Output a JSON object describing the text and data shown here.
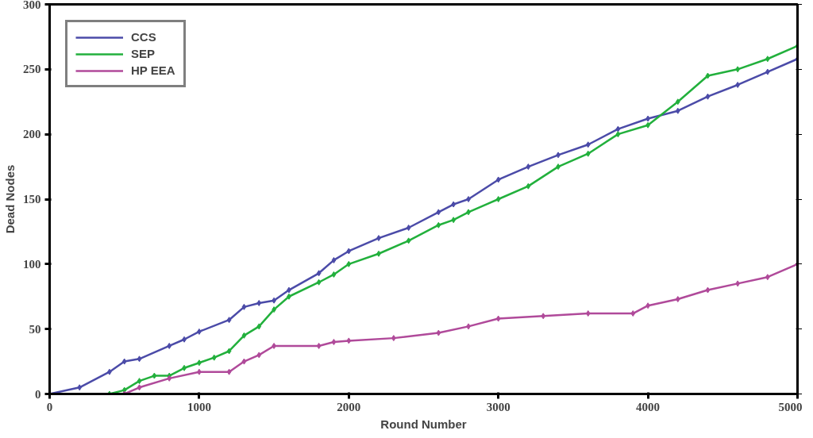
{
  "chart_data": {
    "type": "line",
    "xlabel": "Round Number",
    "ylabel": "Dead Nodes",
    "xlim": [
      0,
      5000
    ],
    "ylim": [
      0,
      300
    ],
    "xticks": [
      0,
      1000,
      2000,
      3000,
      4000,
      5000
    ],
    "yticks": [
      0,
      50,
      100,
      150,
      200,
      250,
      300
    ],
    "grid": false,
    "legend": "top left",
    "marker": "diamond",
    "line_style": "solid",
    "series": [
      {
        "name": "CCS",
        "color": "#4b4ba8",
        "x": [
          0,
          200,
          400,
          500,
          600,
          800,
          900,
          1000,
          1200,
          1300,
          1400,
          1500,
          1600,
          1800,
          1900,
          2000,
          2200,
          2400,
          2600,
          2700,
          2800,
          3000,
          3200,
          3400,
          3600,
          3800,
          4000,
          4200,
          4400,
          4600,
          4800,
          5000
        ],
        "values": [
          0,
          5,
          17,
          25,
          27,
          37,
          42,
          48,
          57,
          67,
          70,
          72,
          80,
          93,
          103,
          110,
          120,
          128,
          140,
          146,
          150,
          165,
          175,
          184,
          192,
          204,
          212,
          218,
          229,
          238,
          248,
          258
        ]
      },
      {
        "name": "SEP",
        "color": "#22b03c",
        "x": [
          0,
          400,
          500,
          600,
          700,
          800,
          900,
          1000,
          1100,
          1200,
          1300,
          1400,
          1500,
          1600,
          1800,
          1900,
          2000,
          2200,
          2400,
          2600,
          2700,
          2800,
          3000,
          3200,
          3400,
          3600,
          3800,
          4000,
          4200,
          4400,
          4600,
          4800,
          5000
        ],
        "values": [
          0,
          0,
          3,
          10,
          14,
          14,
          20,
          24,
          28,
          33,
          45,
          52,
          65,
          75,
          86,
          92,
          100,
          108,
          118,
          130,
          134,
          140,
          150,
          160,
          175,
          185,
          200,
          207,
          225,
          245,
          250,
          258,
          268
        ]
      },
      {
        "name": "HP EEA",
        "color": "#b04a9a",
        "x": [
          0,
          500,
          600,
          800,
          1000,
          1200,
          1300,
          1400,
          1500,
          1800,
          1900,
          2000,
          2300,
          2600,
          2800,
          3000,
          3300,
          3600,
          3900,
          4000,
          4200,
          4400,
          4600,
          4800,
          5000
        ],
        "values": [
          0,
          0,
          5,
          12,
          17,
          17,
          25,
          30,
          37,
          37,
          40,
          41,
          43,
          47,
          52,
          58,
          60,
          62,
          62,
          68,
          73,
          80,
          85,
          90,
          100
        ]
      }
    ]
  }
}
